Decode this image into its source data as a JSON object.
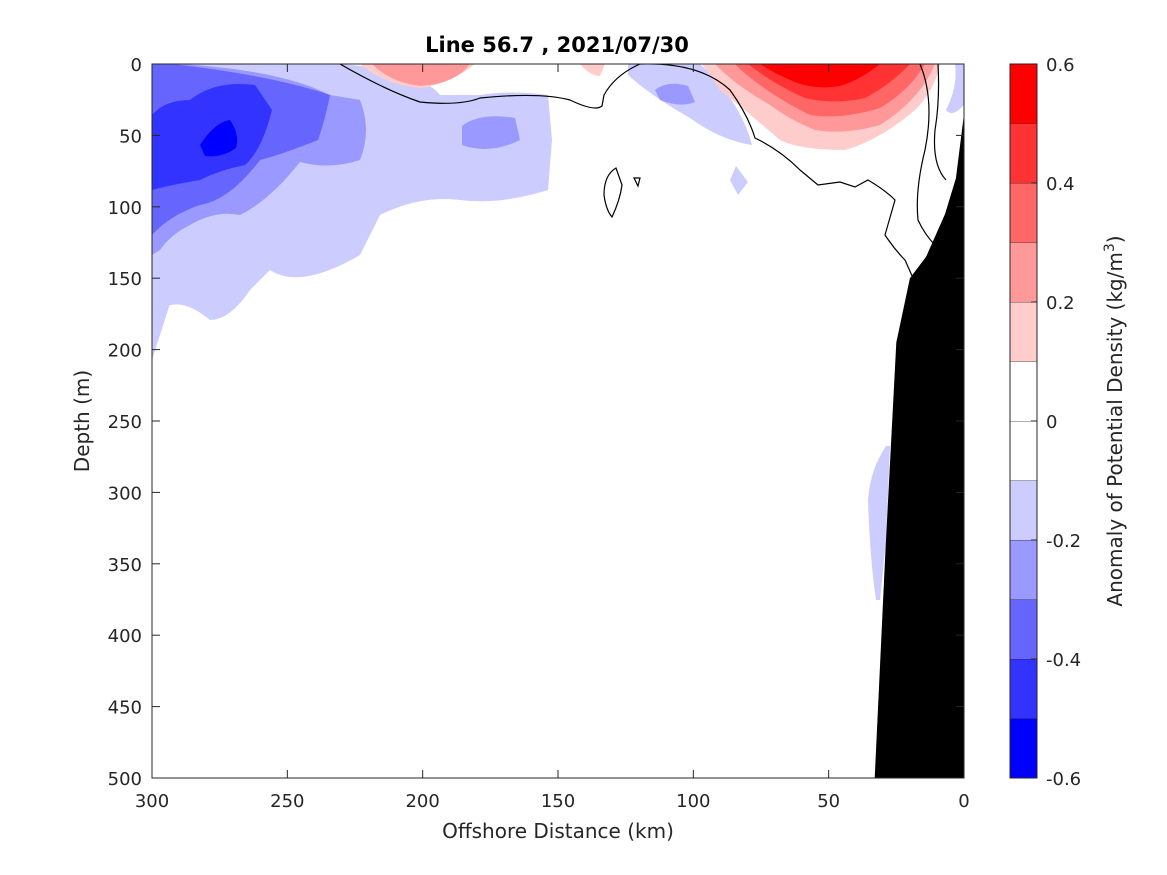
{
  "chart_data": {
    "type": "contour",
    "title": "Line 56.7 , 2021/07/30",
    "xlabel": "Offshore Distance (km)",
    "ylabel": "Depth (m)",
    "colorbar_label": "Anomaly of Potential Density (kg/m",
    "colorbar_label_sup": "3",
    "colorbar_label_close": ")",
    "xlim": [
      300,
      0
    ],
    "ylim": [
      0,
      500
    ],
    "x_ticks": [
      300,
      250,
      200,
      150,
      100,
      50,
      0
    ],
    "y_ticks": [
      0,
      50,
      100,
      150,
      200,
      250,
      300,
      350,
      400,
      450,
      500
    ],
    "colorbar_ticks": [
      "0.6",
      "0.4",
      "0.2",
      "0",
      "-0.2",
      "-0.4",
      "-0.6"
    ],
    "clim": [
      -0.6,
      0.6
    ],
    "contour_step": 0.1,
    "levels": [
      {
        "range": [
          -0.6,
          -0.5
        ],
        "color": "#0000ff"
      },
      {
        "range": [
          -0.5,
          -0.4
        ],
        "color": "#3333ff"
      },
      {
        "range": [
          -0.4,
          -0.3
        ],
        "color": "#6666ff"
      },
      {
        "range": [
          -0.3,
          -0.2
        ],
        "color": "#9999ff"
      },
      {
        "range": [
          -0.2,
          -0.1
        ],
        "color": "#ccccff"
      },
      {
        "range": [
          -0.1,
          0.0
        ],
        "color": "#ffffff"
      },
      {
        "range": [
          0.0,
          0.1
        ],
        "color": "#ffffff"
      },
      {
        "range": [
          0.1,
          0.2
        ],
        "color": "#ffcccc"
      },
      {
        "range": [
          0.2,
          0.3
        ],
        "color": "#ff9999"
      },
      {
        "range": [
          0.3,
          0.4
        ],
        "color": "#ff6666"
      },
      {
        "range": [
          0.4,
          0.5
        ],
        "color": "#ff3333"
      },
      {
        "range": [
          0.5,
          0.6
        ],
        "color": "#ff0000"
      }
    ],
    "features": [
      {
        "anomaly": "negative",
        "center_km": 275,
        "center_depth_m": 55,
        "peak": -0.55
      },
      {
        "anomaly": "negative",
        "center_km": 105,
        "center_depth_m": 20,
        "peak": -0.25
      },
      {
        "anomaly": "negative",
        "center_km": 178,
        "center_depth_m": 48,
        "peak": -0.25
      },
      {
        "anomaly": "negative",
        "center_km": 32,
        "center_depth_m": 300,
        "peak": -0.15
      },
      {
        "anomaly": "positive",
        "center_km": 57,
        "center_depth_m": 5,
        "peak": 0.55
      },
      {
        "anomaly": "positive",
        "center_km": 195,
        "center_depth_m": 5,
        "peak": 0.25
      }
    ],
    "bathymetry": {
      "color": "#000000",
      "points": [
        [
          33,
          500
        ],
        [
          29,
          340
        ],
        [
          25,
          195
        ],
        [
          20,
          150
        ],
        [
          14,
          135
        ],
        [
          7,
          105
        ],
        [
          3,
          80
        ],
        [
          0,
          35
        ],
        [
          0,
          500
        ]
      ]
    },
    "grid": false,
    "colorbar": "right"
  }
}
